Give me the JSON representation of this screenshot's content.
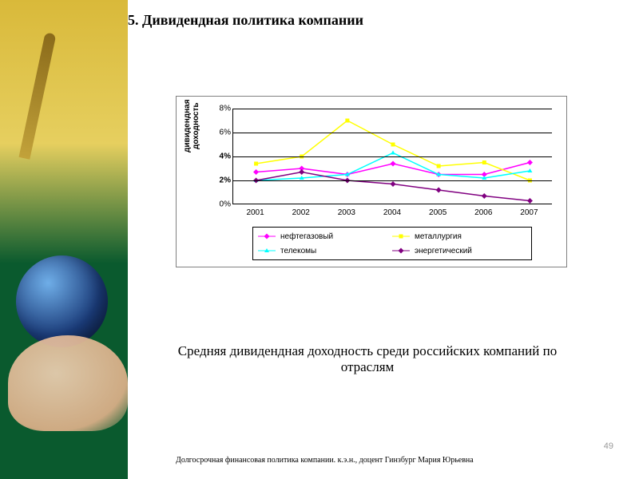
{
  "title": "5. Дивидендная политика компании",
  "chart": {
    "type": "line",
    "y_axis_label_line1": "дивидендная",
    "y_axis_label_line2": "доходность",
    "categories": [
      "2001",
      "2002",
      "2003",
      "2004",
      "2005",
      "2006",
      "2007"
    ],
    "yticks": [
      0,
      2,
      4,
      6,
      8
    ],
    "ytick_labels": [
      "0%",
      "2%",
      "4%",
      "6%",
      "8%"
    ],
    "ytick_bold": [
      false,
      true,
      true,
      false,
      false
    ],
    "ylim": [
      0,
      8
    ],
    "background_color": "#ffffff",
    "grid_color": "#000000",
    "axis_fontsize": 10,
    "series": [
      {
        "name": "нефтегазовый",
        "color": "#ff00ff",
        "marker": "diamond",
        "values": [
          2.7,
          3.0,
          2.5,
          3.4,
          2.5,
          2.5,
          3.5
        ]
      },
      {
        "name": "металлургия",
        "color": "#ffff00",
        "marker": "square",
        "values": [
          3.4,
          4.0,
          7.0,
          5.0,
          3.2,
          3.5,
          2.0
        ]
      },
      {
        "name": "телекомы",
        "color": "#00ffff",
        "marker": "triangle",
        "values": [
          2.0,
          2.2,
          2.5,
          4.3,
          2.5,
          2.2,
          2.8
        ]
      },
      {
        "name": "энергетический",
        "color": "#800080",
        "marker": "diamond",
        "values": [
          2.0,
          2.7,
          2.0,
          1.7,
          1.2,
          0.7,
          0.3
        ]
      }
    ],
    "legend_font": "Arial",
    "legend_fontsize": 10
  },
  "subtitle": "Средняя дивидендная доходность среди российских компаний по отраслям",
  "footer": "Долгосрочная финансовая политика компании.   к.э.н., доцент Гинзбург Мария Юрьевна",
  "page_number": "49"
}
